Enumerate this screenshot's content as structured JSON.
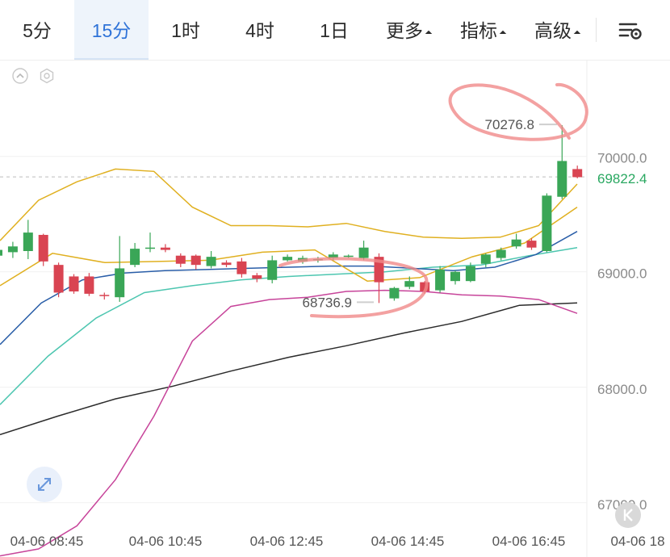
{
  "toolbar": {
    "tabs": [
      {
        "label": "5分",
        "active": false
      },
      {
        "label": "15分",
        "active": true
      },
      {
        "label": "1时",
        "active": false
      },
      {
        "label": "4时",
        "active": false
      },
      {
        "label": "1日",
        "active": false
      },
      {
        "label": "更多",
        "active": false,
        "dropdown": true
      },
      {
        "label": "指标",
        "active": false,
        "dropdown": true
      },
      {
        "label": "高级",
        "active": false,
        "dropdown": true
      }
    ],
    "settings_icon": "chart-settings-icon"
  },
  "chart_data": {
    "type": "candlestick",
    "x_ticks": [
      "04-06 08:45",
      "04-06 10:45",
      "04-06 12:45",
      "04-06 14:45",
      "04-06 16:45",
      "04-06 18"
    ],
    "y_ticks": [
      "70000.0",
      "69000.0",
      "68000.0",
      "67000.0"
    ],
    "ylim": [
      66530,
      70830
    ],
    "last_price": {
      "label": "69822.4",
      "value": 69822.4
    },
    "annotations": {
      "high": {
        "label": "70276.8",
        "value": 70276.8
      },
      "low": {
        "label": "68736.9",
        "value": 68736.9
      }
    },
    "candles": [
      [
        69140,
        69190,
        69040,
        69230
      ],
      [
        69170,
        69220,
        69120,
        69260
      ],
      [
        69180,
        69340,
        69110,
        69450
      ],
      [
        69320,
        69090,
        69050,
        69330
      ],
      [
        69060,
        68820,
        68780,
        69080
      ],
      [
        68960,
        68830,
        68810,
        68980
      ],
      [
        68960,
        68810,
        68790,
        68990
      ],
      [
        68800,
        68790,
        68760,
        68820
      ],
      [
        68780,
        69030,
        68740,
        69310
      ],
      [
        69060,
        69200,
        69040,
        69250
      ],
      [
        69200,
        69210,
        69170,
        69340
      ],
      [
        69210,
        69190,
        69170,
        69240
      ],
      [
        69140,
        69070,
        69040,
        69160
      ],
      [
        69140,
        69060,
        69020,
        69150
      ],
      [
        69050,
        69130,
        69030,
        69180
      ],
      [
        69080,
        69060,
        69040,
        69100
      ],
      [
        69090,
        68980,
        68950,
        69120
      ],
      [
        68970,
        68940,
        68910,
        68990
      ],
      [
        68930,
        69100,
        68900,
        69140
      ],
      [
        69100,
        69130,
        69090,
        69150
      ],
      [
        69090,
        69120,
        69070,
        69140
      ],
      [
        69100,
        69110,
        69080,
        69130
      ],
      [
        69120,
        69150,
        69100,
        69170
      ],
      [
        69130,
        69140,
        69120,
        69150
      ],
      [
        69120,
        69210,
        69100,
        69270
      ],
      [
        69130,
        68910,
        68730,
        69160
      ],
      [
        68770,
        68860,
        68750,
        68870
      ],
      [
        68870,
        68920,
        68850,
        68960
      ],
      [
        68910,
        68830,
        68810,
        68920
      ],
      [
        68840,
        69020,
        68820,
        69050
      ],
      [
        68920,
        69000,
        68890,
        69010
      ],
      [
        68920,
        69050,
        68910,
        69080
      ],
      [
        69070,
        69150,
        69040,
        69160
      ],
      [
        69120,
        69190,
        69100,
        69210
      ],
      [
        69220,
        69280,
        69200,
        69330
      ],
      [
        69270,
        69210,
        69190,
        69290
      ],
      [
        69180,
        69660,
        69170,
        69680
      ],
      [
        69650,
        69960,
        69630,
        70270
      ],
      [
        69890,
        69820,
        69810,
        69920
      ]
    ],
    "overlays": {
      "ma_black": [
        67590,
        67750,
        67900,
        68010,
        68140,
        68260,
        68360,
        68470,
        68570,
        68710,
        68730
      ],
      "ma_teal": [
        67850,
        68270,
        68600,
        68820,
        68880,
        68930,
        68960,
        68980,
        69000,
        69040,
        69060,
        69140,
        69210
      ],
      "ma_blue": [
        68370,
        68730,
        68930,
        68990,
        69010,
        69020,
        69030,
        69040,
        69050,
        69050,
        69030,
        69010,
        69040,
        69150,
        69350
      ],
      "ma_yellow": [
        68880,
        69160,
        69080,
        69090,
        69100,
        69170,
        69190,
        68920,
        68950,
        69130,
        69250,
        69560
      ],
      "boll_upper": [
        69270,
        69620,
        69780,
        69890,
        69870,
        69560,
        69400,
        69400,
        69390,
        69420,
        69350,
        69300,
        69290,
        69300,
        69400,
        69760
      ],
      "boll_lower": [
        66540,
        66600,
        66800,
        67200,
        67750,
        68400,
        68700,
        68760,
        68780,
        68830,
        68840,
        68830,
        68800,
        68790,
        68760,
        68640
      ]
    }
  }
}
